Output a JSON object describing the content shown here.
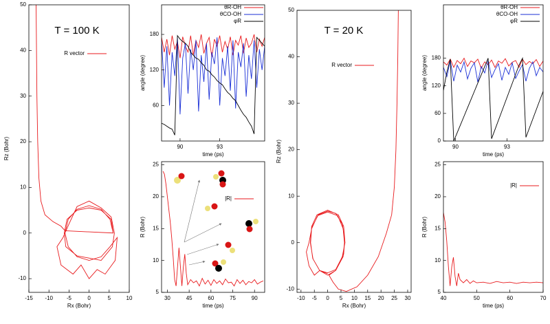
{
  "chart_data": [
    {
      "type": "line",
      "title": "T = 100 K",
      "xlabel": "Rx (Bohr)",
      "ylabel": "Rz (Bohr)",
      "xlim": [
        -15,
        10
      ],
      "ylim": [
        -13,
        50
      ],
      "xticks": [
        -15,
        -10,
        -5,
        0,
        5,
        10
      ],
      "yticks": [
        -10,
        0,
        10,
        20,
        30,
        40,
        50
      ],
      "x": [
        -13.2,
        -13.1,
        -13,
        -12.8,
        -12.5,
        -12,
        -11,
        -9,
        -7,
        -6,
        6,
        5.2,
        3,
        0,
        -3,
        -5.2,
        -6,
        -5.2,
        -3,
        0,
        3,
        5.2,
        7,
        6.5,
        4,
        2,
        0,
        -2,
        -4,
        -7,
        -8,
        -6.5,
        -5,
        -3,
        0,
        3,
        5.5,
        6.3,
        5.8,
        3,
        0,
        -3,
        -5.8,
        -6.2,
        -5.5,
        -3,
        0,
        3,
        5.5,
        6
      ],
      "series": [
        {
          "name": "R vector",
          "color": "#e8191c",
          "values": [
            50,
            40,
            30,
            20,
            12,
            7,
            4,
            2.5,
            1.5,
            0.5,
            0,
            3,
            5.2,
            6,
            5.2,
            3,
            0,
            -3,
            -5.2,
            -6,
            -5.2,
            -3,
            -1,
            -6,
            -9,
            -8,
            -10,
            -7,
            -9,
            -7,
            -3,
            -1,
            2,
            5.8,
            7,
            5.5,
            3.5,
            0,
            -3,
            -6,
            -5.5,
            -5,
            -3,
            0,
            3,
            5,
            5.5,
            5,
            3,
            0
          ]
        }
      ]
    },
    {
      "type": "line",
      "ylabel": "angle (degree)",
      "xlabel": "time (ps)",
      "xlim": [
        88.6,
        96.4
      ],
      "ylim": [
        0,
        230
      ],
      "xticks": [
        90,
        93
      ],
      "yticks": [
        60,
        120,
        180
      ],
      "x": [
        88.6,
        88.8,
        89,
        89.2,
        89.4,
        89.6,
        89.8,
        90,
        90.2,
        90.4,
        90.6,
        90.8,
        91,
        91.2,
        91.4,
        91.6,
        91.8,
        92,
        92.2,
        92.4,
        92.6,
        92.8,
        93,
        93.2,
        93.4,
        93.6,
        93.8,
        94,
        94.2,
        94.4,
        94.6,
        94.8,
        95,
        95.2,
        95.4,
        95.6,
        95.8,
        96,
        96.2,
        96.4
      ],
      "series": [
        {
          "name": "θR-OH",
          "color": "#e8191c",
          "values": [
            175,
            150,
            172,
            145,
            178,
            155,
            168,
            140,
            176,
            160,
            150,
            178,
            145,
            170,
            158,
            180,
            148,
            165,
            175,
            142,
            172,
            160,
            178,
            150,
            168,
            155,
            176,
            145,
            170,
            162,
            178,
            148,
            174,
            158,
            165,
            180,
            150,
            172,
            160,
            175
          ]
        },
        {
          "name": "θCO-OH",
          "color": "#1a2fd6",
          "values": [
            170,
            90,
            160,
            60,
            150,
            110,
            175,
            45,
            140,
            165,
            80,
            155,
            120,
            170,
            50,
            145,
            100,
            165,
            70,
            150,
            130,
            175,
            60,
            140,
            110,
            160,
            85,
            170,
            55,
            150,
            125,
            165,
            75,
            145,
            105,
            170,
            90,
            155,
            120,
            160
          ]
        },
        {
          "name": "φR",
          "color": "#000000",
          "values": [
            30,
            28,
            25,
            22,
            20,
            10,
            178,
            172,
            168,
            165,
            160,
            150,
            145,
            140,
            138,
            132,
            128,
            120,
            118,
            112,
            108,
            102,
            98,
            95,
            88,
            82,
            78,
            72,
            68,
            60,
            52,
            45,
            40,
            32,
            25,
            12,
            175,
            170,
            165,
            160
          ]
        }
      ]
    },
    {
      "type": "line",
      "ylabel": "R (Bohr)",
      "xlabel": "time (ps)",
      "xlim": [
        26,
        97
      ],
      "ylim": [
        5,
        25.5
      ],
      "xticks": [
        30,
        45,
        60,
        75,
        90
      ],
      "yticks": [
        5,
        10,
        15,
        20,
        25
      ],
      "x": [
        27,
        28,
        29,
        30,
        31,
        32,
        33,
        34,
        35,
        36,
        37,
        38,
        39,
        40,
        41,
        42,
        43,
        44,
        46,
        48,
        50,
        52,
        54,
        56,
        58,
        60,
        62,
        64,
        66,
        68,
        70,
        72,
        74,
        76,
        78,
        80,
        82,
        84,
        86,
        88,
        90,
        92,
        94,
        96
      ],
      "series": [
        {
          "name": "|R|",
          "color": "#e8191c",
          "values": [
            24,
            23.5,
            22,
            20,
            18,
            16,
            13.5,
            10.5,
            7,
            6,
            9,
            12,
            9,
            6,
            9,
            11,
            8,
            6.2,
            7,
            6.5,
            6.8,
            6,
            7.2,
            6.3,
            6.9,
            6.1,
            7,
            6.4,
            6.8,
            6.2,
            7.1,
            6.5,
            6.6,
            6,
            7,
            6.4,
            6.9,
            6.2,
            6.7,
            6.5,
            7,
            6.3,
            6.6,
            6.8
          ]
        }
      ]
    },
    {
      "type": "line",
      "title": "T = 20 K",
      "xlabel": "Rx (Bohr)",
      "ylabel": "Rz (Bohr)",
      "xlim": [
        -11.5,
        31.3
      ],
      "ylim": [
        -10.7,
        50
      ],
      "xticks": [
        -10,
        -5,
        0,
        5,
        10,
        15,
        20,
        25,
        30
      ],
      "yticks": [
        -10,
        0,
        10,
        20,
        30,
        40,
        50
      ],
      "x": [
        26.5,
        26.3,
        26,
        25.6,
        25,
        24,
        22,
        19,
        15,
        11,
        7,
        4,
        2,
        0.5,
        3,
        5.5,
        6.5,
        6,
        4,
        0,
        -4,
        -6,
        -6.5,
        -5.5,
        -3,
        0,
        3,
        5.8,
        6.3,
        5.8,
        3.8,
        0,
        -3.8,
        -6,
        -7,
        -8,
        -7,
        -5,
        -3,
        0,
        3,
        6,
        6.4,
        5.5,
        3,
        0,
        -3.5,
        -6,
        -6.4,
        -5.6,
        -3,
        0
      ],
      "series": [
        {
          "name": "R vector",
          "color": "#e8191c",
          "values": [
            50,
            40,
            30,
            20,
            12,
            6,
            2,
            -3,
            -7,
            -9.5,
            -10.5,
            -10,
            -8.5,
            -7,
            -6,
            -3,
            0,
            3.5,
            6,
            7,
            6,
            3.5,
            0,
            -3.5,
            -6,
            -7,
            -6,
            -3,
            0,
            3,
            5.8,
            6.6,
            5.8,
            3,
            0,
            -2,
            -5,
            -7,
            -6,
            -6.5,
            -5.8,
            -2.5,
            0.5,
            4,
            6.3,
            6.8,
            6,
            3.2,
            0,
            -3.4,
            -6,
            -6.7
          ]
        }
      ]
    },
    {
      "type": "line",
      "ylabel": "angle (degree)",
      "xlabel": "time (ps)",
      "xlim": [
        89.3,
        95.1
      ],
      "ylim": [
        0,
        296
      ],
      "xticks": [
        90,
        93
      ],
      "yticks": [
        0,
        60,
        120,
        180
      ],
      "x": [
        89.3,
        89.5,
        89.7,
        89.9,
        90.1,
        90.3,
        90.5,
        90.7,
        90.9,
        91.1,
        91.3,
        91.5,
        91.7,
        91.9,
        92.1,
        92.3,
        92.5,
        92.7,
        92.9,
        93.1,
        93.3,
        93.5,
        93.7,
        93.9,
        94.1,
        94.3,
        94.5,
        94.7,
        94.9,
        95.1
      ],
      "series": [
        {
          "name": "θR-OH",
          "color": "#e8191c",
          "values": [
            172,
            165,
            178,
            160,
            175,
            168,
            180,
            162,
            174,
            170,
            178,
            158,
            172,
            166,
            176,
            160,
            174,
            169,
            179,
            163,
            171,
            175,
            160,
            178,
            166,
            173,
            168,
            177,
            162,
            174
          ]
        },
        {
          "name": "θCO-OH",
          "color": "#1a2fd6",
          "values": [
            160,
            140,
            175,
            130,
            165,
            150,
            172,
            135,
            158,
            170,
            128,
            162,
            148,
            175,
            138,
            155,
            168,
            132,
            160,
            145,
            170,
            136,
            152,
            166,
            130,
            158,
            172,
            142,
            160,
            150
          ]
        },
        {
          "name": "φR",
          "color": "#000000",
          "values": [
            110,
            150,
            178,
            0,
            18,
            36,
            54,
            72,
            90,
            108,
            126,
            144,
            162,
            180,
            5,
            25,
            45,
            65,
            85,
            105,
            125,
            145,
            165,
            180,
            8,
            28,
            48,
            68,
            88,
            108
          ]
        }
      ]
    },
    {
      "type": "line",
      "ylabel": "R (Bohr)",
      "xlabel": "time (ps)",
      "xlim": [
        40,
        70
      ],
      "ylim": [
        5,
        25.5
      ],
      "xticks": [
        40,
        50,
        60,
        70
      ],
      "yticks": [
        5,
        10,
        15,
        20,
        25
      ],
      "x": [
        40,
        40.5,
        41,
        41.5,
        42,
        42.5,
        43,
        43.5,
        44,
        44.5,
        45,
        46,
        47,
        48,
        49,
        50,
        52,
        54,
        56,
        58,
        60,
        62,
        64,
        66,
        68,
        70
      ],
      "series": [
        {
          "name": "|R|",
          "color": "#e8191c",
          "values": [
            17.5,
            16,
            13,
            9,
            6,
            9,
            10.5,
            7.5,
            6,
            8,
            7,
            6.5,
            7,
            6.4,
            6.8,
            6.5,
            6.6,
            6.4,
            6.7,
            6.5,
            6.6,
            6.4,
            6.6,
            6.5,
            6.6,
            6.5
          ]
        }
      ]
    }
  ]
}
